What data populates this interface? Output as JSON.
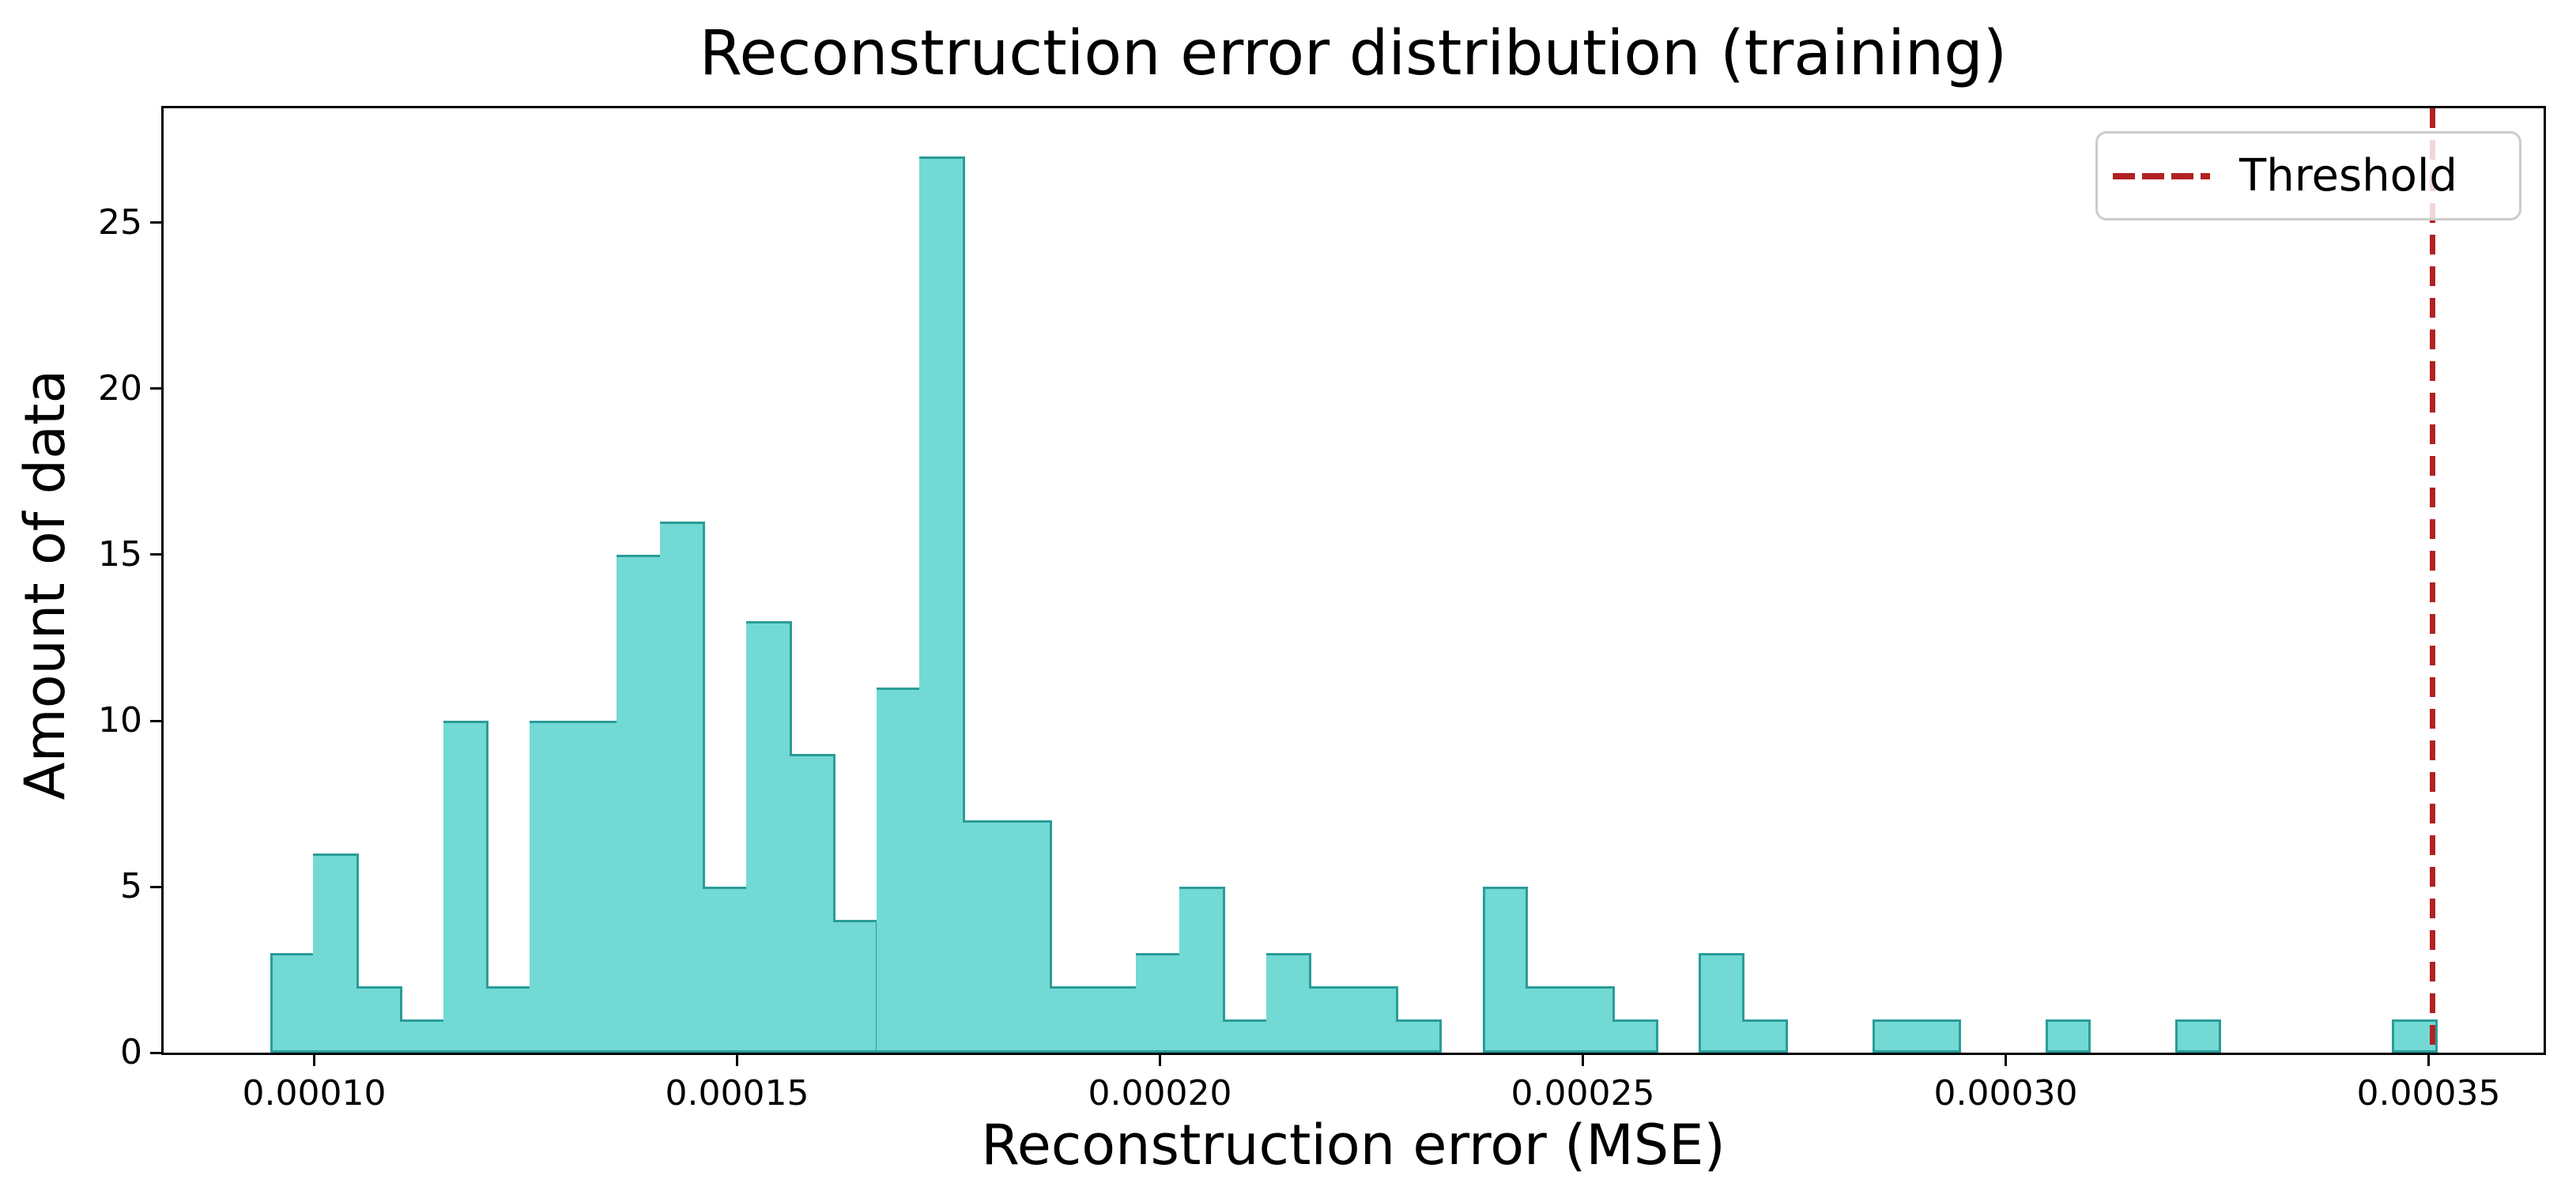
{
  "chart_data": {
    "type": "bar",
    "subtype": "histogram",
    "title": "Reconstruction error distribution (training)",
    "xlabel": "Reconstruction error (MSE)",
    "ylabel": "Amount of data",
    "bar_color": "#72d9d4",
    "bar_edge_color": "#2a9c98",
    "bin_start": 9.477e-05,
    "bin_width": 5.12e-06,
    "counts": [
      3,
      6,
      2,
      1,
      10,
      2,
      10,
      10,
      15,
      16,
      5,
      13,
      9,
      4,
      11,
      27,
      7,
      7,
      2,
      2,
      3,
      5,
      1,
      3,
      2,
      2,
      1,
      0,
      5,
      2,
      2,
      1,
      0,
      3,
      1,
      0,
      0,
      1,
      1,
      0,
      0,
      1,
      0,
      0,
      1,
      0,
      0,
      0,
      0,
      1
    ],
    "total_samples": 198,
    "x_ticks": [
      0.0001,
      0.00015,
      0.0002,
      0.00025,
      0.0003,
      0.00035
    ],
    "x_tick_labels": [
      "0.00010",
      "0.00015",
      "0.00020",
      "0.00025",
      "0.00030",
      "0.00035"
    ],
    "y_ticks": [
      0,
      5,
      10,
      15,
      20,
      25
    ],
    "y_tick_labels": [
      "0",
      "5",
      "10",
      "15",
      "20",
      "25"
    ],
    "xlim": [
      8.22e-05,
      0.0003636
    ],
    "ylim": [
      0,
      28.45
    ],
    "grid": false,
    "threshold": {
      "x": 0.0003505,
      "color": "#b22222",
      "style": "dashed"
    },
    "legend": {
      "position": "upper right",
      "entries": [
        {
          "label": "Threshold",
          "color": "#b22222",
          "line_style": "dashed"
        }
      ]
    }
  }
}
